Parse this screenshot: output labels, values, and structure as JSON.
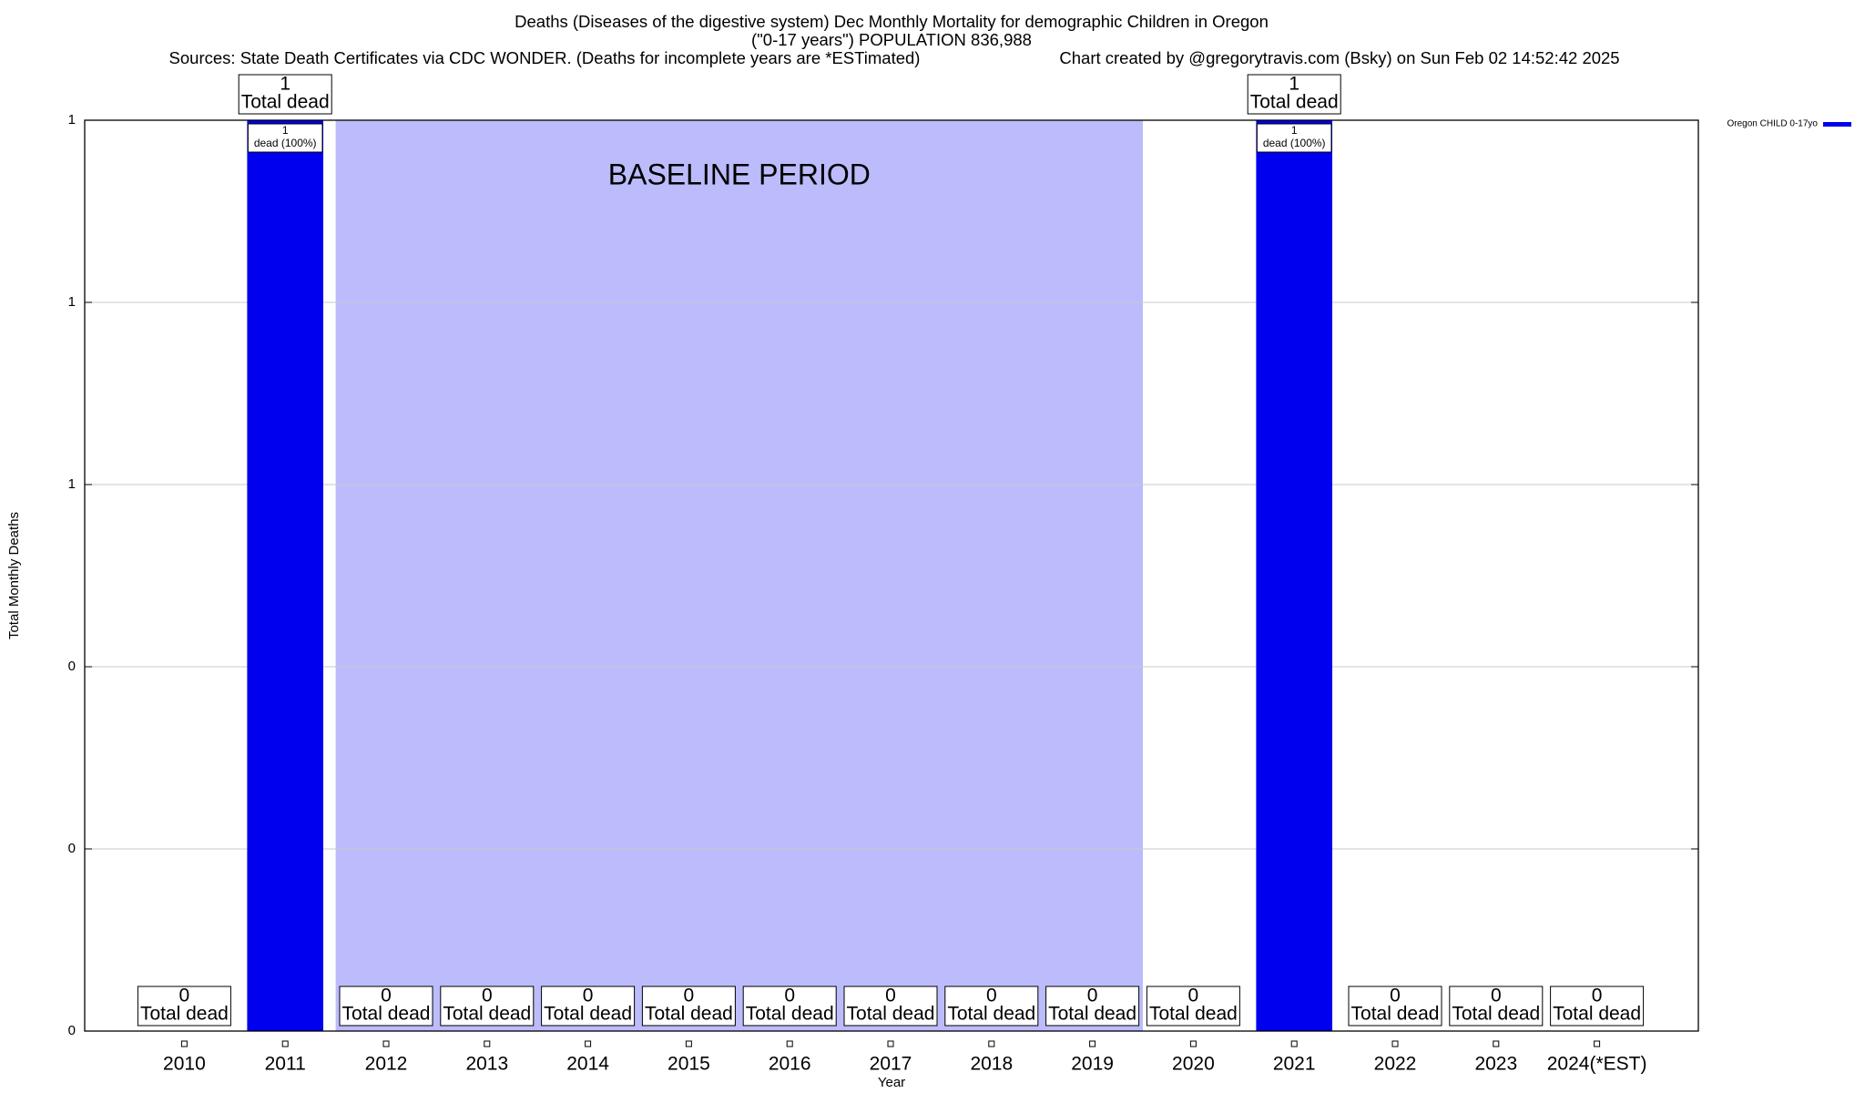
{
  "chart_data": {
    "type": "bar",
    "title": "Deaths (Diseases of the digestive system) Dec Monthly Mortality for demographic Children in Oregon",
    "subtitle": "(\"0-17 years\") POPULATION 836,988",
    "source": "Sources: State Death Certificates via CDC WONDER. (Deaths for incomplete years are *ESTimated)",
    "credit": "Chart created by @gregorytravis.com (Bsky) on Sun Feb 02 14:52:42 2025",
    "x_label": "Year",
    "y_label": "Total Monthly Deaths",
    "categories": [
      "2010",
      "2011",
      "2012",
      "2013",
      "2014",
      "2015",
      "2016",
      "2017",
      "2018",
      "2019",
      "2020",
      "2021",
      "2022",
      "2023",
      "2024(*EST)"
    ],
    "series": [
      {
        "name": "Oregon CHILD 0-17yo",
        "color": "#0000ee",
        "values": [
          0,
          1,
          0,
          0,
          0,
          0,
          0,
          0,
          0,
          0,
          0,
          1,
          0,
          0,
          0
        ]
      }
    ],
    "value_caption": "Total dead",
    "inner_labels": [
      null,
      "dead (100%)",
      null,
      null,
      null,
      null,
      null,
      null,
      null,
      null,
      null,
      "dead (100%)",
      null,
      null,
      null
    ],
    "shaded_region": {
      "label": "BASELINE PERIOD",
      "from": "2012",
      "to": "2019",
      "color": "#bcbcfc"
    },
    "ylim": [
      0,
      1
    ],
    "yticks": [
      0,
      {
        "value": 0.2,
        "label": "0"
      },
      {
        "value": 0.4,
        "label": "0"
      },
      {
        "value": 0.6,
        "label": "1"
      },
      {
        "value": 0.8,
        "label": "1"
      },
      1
    ],
    "grid": true,
    "legend": "top-right"
  }
}
